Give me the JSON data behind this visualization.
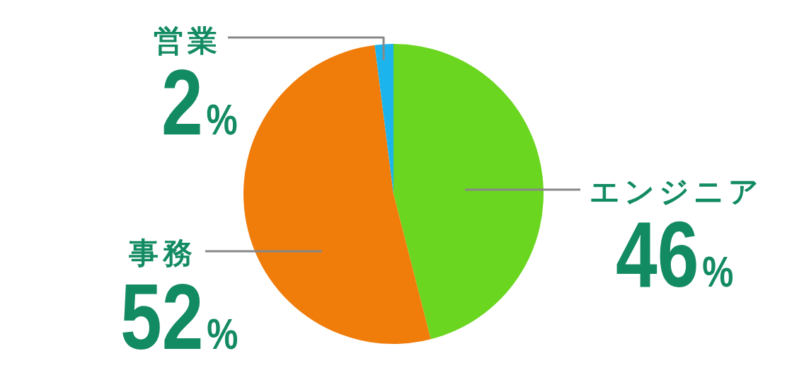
{
  "chart_data": {
    "type": "pie",
    "categories": [
      "エンジニア",
      "事務",
      "営業"
    ],
    "values": [
      46,
      52,
      2
    ],
    "colors": [
      "#6ad620",
      "#f07c0a",
      "#1cb4ec"
    ],
    "value_labels": [
      "46%",
      "52%",
      "2%"
    ]
  }
}
